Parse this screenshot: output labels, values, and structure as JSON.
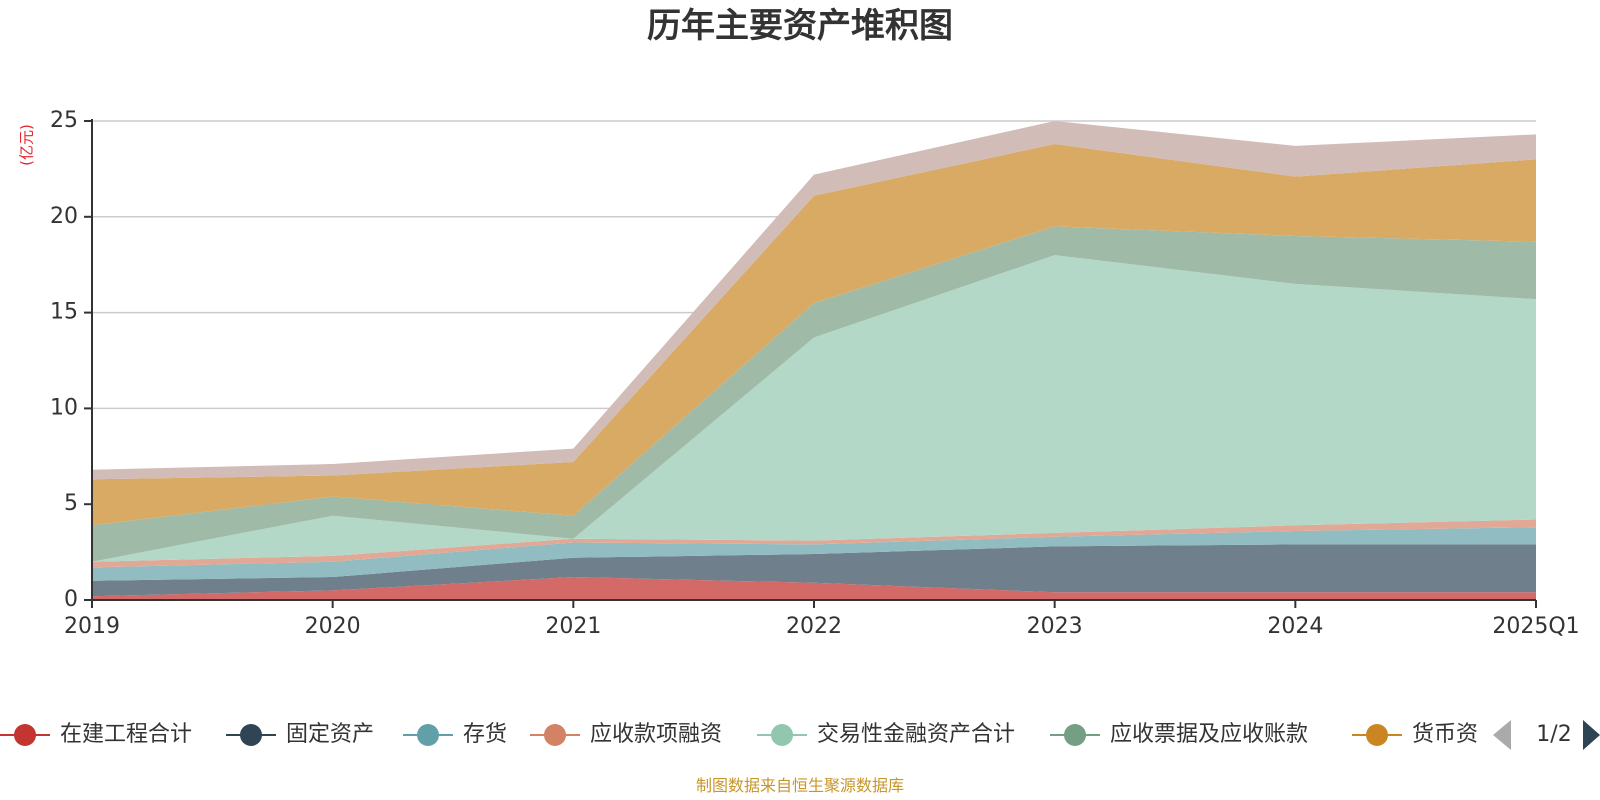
{
  "chart_data": {
    "type": "area",
    "stacked": true,
    "title": "历年主要资产堆积图",
    "unit_label": "(亿元)",
    "x": [
      "2019",
      "2020",
      "2021",
      "2022",
      "2023",
      "2024",
      "2025Q1"
    ],
    "ylim": [
      0,
      25
    ],
    "yticks": [
      "0",
      "5",
      "10",
      "15",
      "20",
      "25"
    ],
    "grid": true,
    "legend_position": "bottom",
    "series": [
      {
        "name": "在建工程合计",
        "color": "#c23531",
        "fill": "#d46a68",
        "values": [
          0.2,
          0.5,
          1.2,
          0.9,
          0.4,
          0.4,
          0.4
        ]
      },
      {
        "name": "固定资产",
        "color": "#2f4554",
        "fill": "#6f7f8b",
        "values": [
          0.8,
          0.7,
          1.0,
          1.5,
          2.4,
          2.5,
          2.5
        ]
      },
      {
        "name": "存货",
        "color": "#61a0a8",
        "fill": "#91bcc2",
        "values": [
          0.7,
          0.8,
          0.8,
          0.5,
          0.5,
          0.7,
          0.9
        ]
      },
      {
        "name": "应收款项融资",
        "color": "#d48265",
        "fill": "#e1a895",
        "values": [
          0.3,
          0.3,
          0.2,
          0.2,
          0.2,
          0.3,
          0.4
        ]
      },
      {
        "name": "交易性金融资产合计",
        "color": "#91c7ae",
        "fill": "#b3d8c8",
        "values": [
          0.0,
          2.1,
          0.0,
          10.6,
          14.5,
          12.6,
          11.5
        ]
      },
      {
        "name": "应收票据及应收账款",
        "color": "#749f83",
        "fill": "#9fbaa7",
        "values": [
          1.9,
          1.0,
          1.2,
          1.8,
          1.5,
          2.5,
          3.0
        ]
      },
      {
        "name": "货币资",
        "color": "#ca8622",
        "fill": "#d9aa64",
        "values": [
          2.4,
          1.1,
          2.8,
          5.6,
          4.3,
          3.1,
          4.3
        ]
      },
      {
        "name": "",
        "color": "#bda29a",
        "fill": "#d1bcb7",
        "values": [
          0.5,
          0.6,
          0.7,
          1.1,
          1.2,
          1.6,
          1.3
        ]
      }
    ]
  },
  "legend": {
    "page_indicator": "1/2",
    "prev_icon": "triangle-left-icon",
    "next_icon": "triangle-right-icon"
  },
  "footer": {
    "source": "制图数据来自恒生聚源数据库"
  }
}
